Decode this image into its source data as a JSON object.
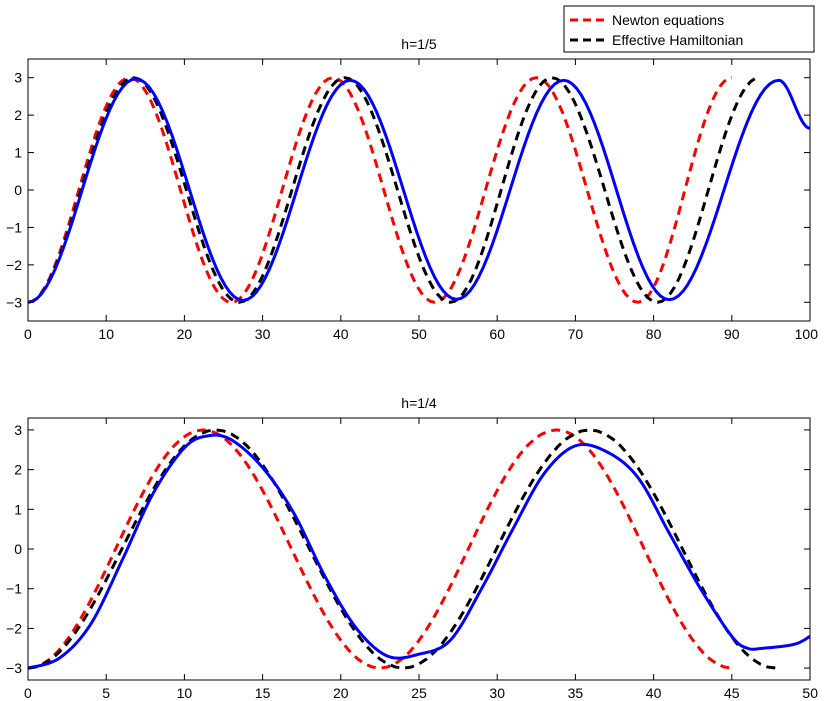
{
  "legend": {
    "placement": "top-right",
    "entries": [
      {
        "name": "Newton equations",
        "color": "#ff0000",
        "dash": "dashed"
      },
      {
        "name": "Effective Hamiltonian",
        "color": "#000000",
        "dash": "dashed"
      }
    ]
  },
  "chart_data": [
    {
      "type": "line",
      "title": "h=1/5",
      "xlim": [
        0,
        100
      ],
      "ylim": [
        -3.5,
        3.5
      ],
      "xticks": [
        0,
        10,
        20,
        30,
        40,
        50,
        60,
        70,
        80,
        90,
        100
      ],
      "yticks": [
        3,
        2,
        1,
        0,
        -1,
        -2,
        -3
      ],
      "series": [
        {
          "name": "Newton equations",
          "color": "#ff0000",
          "style": "dashed",
          "x_end": 90,
          "extrema": [
            [
              0,
              -3
            ],
            [
              13,
              3
            ],
            [
              26,
              -3
            ],
            [
              39,
              3
            ],
            [
              52,
              -3
            ],
            [
              65,
              3
            ],
            [
              78,
              -3
            ],
            [
              90,
              3
            ]
          ]
        },
        {
          "name": "Effective Hamiltonian",
          "color": "#000000",
          "style": "dashed",
          "x_end": 93.5,
          "extrema": [
            [
              0,
              -3
            ],
            [
              13.5,
              3
            ],
            [
              27,
              -3
            ],
            [
              40.5,
              3
            ],
            [
              54,
              -3
            ],
            [
              67,
              3
            ],
            [
              80.5,
              -3
            ],
            [
              93.5,
              3
            ]
          ]
        },
        {
          "color": "#0000ff",
          "style": "solid",
          "x_end": 100,
          "extrema": [
            [
              0,
              -3
            ],
            [
              13.8,
              2.97
            ],
            [
              27.5,
              -2.95
            ],
            [
              41.2,
              2.93
            ],
            [
              54.8,
              -2.92
            ],
            [
              68.5,
              2.93
            ],
            [
              82,
              -2.93
            ],
            [
              96,
              2.93
            ],
            [
              100,
              1.65
            ]
          ]
        }
      ]
    },
    {
      "type": "line",
      "title": "h=1/4",
      "xlim": [
        0,
        50
      ],
      "ylim": [
        -3.3,
        3.3
      ],
      "xticks": [
        0,
        5,
        10,
        15,
        20,
        25,
        30,
        35,
        40,
        45,
        50
      ],
      "yticks": [
        3,
        2,
        1,
        0,
        -1,
        -2,
        -3
      ],
      "series": [
        {
          "name": "Newton equations",
          "color": "#ff0000",
          "style": "dashed",
          "x_end": 45,
          "extrema": [
            [
              0,
              -3
            ],
            [
              11.2,
              3
            ],
            [
              22.5,
              -3
            ],
            [
              33.8,
              3
            ],
            [
              45,
              -3
            ]
          ]
        },
        {
          "name": "Effective Hamiltonian",
          "color": "#000000",
          "style": "dashed",
          "x_end": 47.8,
          "extrema": [
            [
              0,
              -3
            ],
            [
              12,
              3
            ],
            [
              24,
              -3
            ],
            [
              35.9,
              3
            ],
            [
              47.8,
              -3
            ]
          ]
        },
        {
          "color": "#0000ff",
          "style": "solid",
          "x_end": 50,
          "points": [
            [
              0,
              -3
            ],
            [
              2,
              -2.75
            ],
            [
              4,
              -1.9
            ],
            [
              6,
              -0.3
            ],
            [
              8,
              1.4
            ],
            [
              10,
              2.55
            ],
            [
              11.5,
              2.85
            ],
            [
              13,
              2.75
            ],
            [
              15,
              2.05
            ],
            [
              17,
              0.9
            ],
            [
              19,
              -0.7
            ],
            [
              21,
              -2.0
            ],
            [
              23,
              -2.7
            ],
            [
              25,
              -2.65
            ],
            [
              27,
              -2.3
            ],
            [
              29,
              -1.0
            ],
            [
              31,
              0.5
            ],
            [
              33,
              1.9
            ],
            [
              35,
              2.6
            ],
            [
              37,
              2.45
            ],
            [
              39,
              1.8
            ],
            [
              41,
              0.4
            ],
            [
              43,
              -1.0
            ],
            [
              45,
              -2.2
            ],
            [
              46,
              -2.5
            ],
            [
              47,
              -2.5
            ],
            [
              49,
              -2.4
            ],
            [
              50,
              -2.2
            ]
          ]
        }
      ]
    }
  ]
}
